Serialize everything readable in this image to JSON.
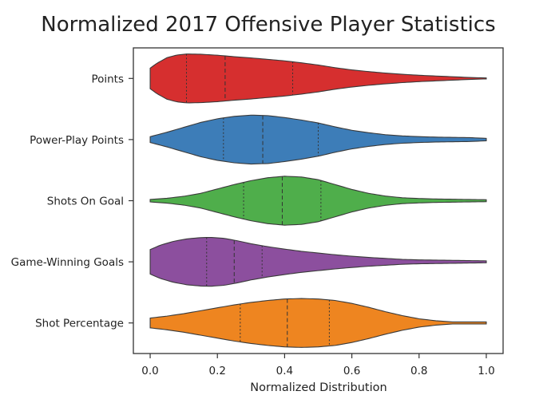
{
  "chart_data": {
    "type": "violin",
    "title": "Normalized 2017 Offensive Player Statistics",
    "xlabel": "Normalized Distribution",
    "ylabel": "",
    "xlim": [
      -0.05,
      1.05
    ],
    "xticks": [
      0.0,
      0.2,
      0.4,
      0.6,
      0.8,
      1.0
    ],
    "xtick_labels": [
      "0.0",
      "0.2",
      "0.4",
      "0.6",
      "0.8",
      "1.0"
    ],
    "orientation": "horizontal",
    "inner": "quartile",
    "grid": false,
    "legend": "none",
    "categories": [
      "Points",
      "Power-Play Points",
      "Shots On Goal",
      "Game-Winning Goals",
      "Shot Percentage"
    ],
    "series": [
      {
        "category": "Points",
        "color": "#d62f2f",
        "range": [
          0.0,
          1.0
        ],
        "quartiles": [
          0.108,
          0.223,
          0.424
        ],
        "density": [
          [
            0.0,
            0.42
          ],
          [
            0.02,
            0.62
          ],
          [
            0.05,
            0.85
          ],
          [
            0.08,
            0.96
          ],
          [
            0.11,
            1.0
          ],
          [
            0.15,
            0.99
          ],
          [
            0.2,
            0.95
          ],
          [
            0.25,
            0.89
          ],
          [
            0.3,
            0.84
          ],
          [
            0.35,
            0.78
          ],
          [
            0.4,
            0.72
          ],
          [
            0.45,
            0.64
          ],
          [
            0.5,
            0.55
          ],
          [
            0.55,
            0.44
          ],
          [
            0.6,
            0.35
          ],
          [
            0.65,
            0.28
          ],
          [
            0.7,
            0.22
          ],
          [
            0.75,
            0.17
          ],
          [
            0.8,
            0.13
          ],
          [
            0.85,
            0.1
          ],
          [
            0.9,
            0.07
          ],
          [
            0.95,
            0.04
          ],
          [
            1.0,
            0.02
          ]
        ]
      },
      {
        "category": "Power-Play Points",
        "color": "#3d7db8",
        "range": [
          0.0,
          1.0
        ],
        "quartiles": [
          0.218,
          0.335,
          0.5
        ],
        "density": [
          [
            0.0,
            0.12
          ],
          [
            0.05,
            0.3
          ],
          [
            0.1,
            0.5
          ],
          [
            0.15,
            0.7
          ],
          [
            0.2,
            0.85
          ],
          [
            0.25,
            0.95
          ],
          [
            0.3,
            1.0
          ],
          [
            0.35,
            0.98
          ],
          [
            0.4,
            0.9
          ],
          [
            0.45,
            0.8
          ],
          [
            0.5,
            0.68
          ],
          [
            0.55,
            0.52
          ],
          [
            0.6,
            0.38
          ],
          [
            0.65,
            0.28
          ],
          [
            0.7,
            0.2
          ],
          [
            0.75,
            0.15
          ],
          [
            0.8,
            0.12
          ],
          [
            0.85,
            0.1
          ],
          [
            0.9,
            0.09
          ],
          [
            0.95,
            0.08
          ],
          [
            1.0,
            0.05
          ]
        ]
      },
      {
        "category": "Shots On Goal",
        "color": "#4fae4b",
        "range": [
          0.0,
          1.0
        ],
        "quartiles": [
          0.278,
          0.393,
          0.508
        ],
        "density": [
          [
            0.0,
            0.05
          ],
          [
            0.05,
            0.1
          ],
          [
            0.1,
            0.18
          ],
          [
            0.15,
            0.3
          ],
          [
            0.2,
            0.48
          ],
          [
            0.25,
            0.66
          ],
          [
            0.3,
            0.82
          ],
          [
            0.35,
            0.94
          ],
          [
            0.4,
            1.0
          ],
          [
            0.45,
            0.97
          ],
          [
            0.5,
            0.86
          ],
          [
            0.55,
            0.66
          ],
          [
            0.6,
            0.46
          ],
          [
            0.65,
            0.3
          ],
          [
            0.7,
            0.19
          ],
          [
            0.75,
            0.12
          ],
          [
            0.8,
            0.09
          ],
          [
            0.85,
            0.07
          ],
          [
            0.9,
            0.06
          ],
          [
            0.95,
            0.05
          ],
          [
            1.0,
            0.04
          ]
        ]
      },
      {
        "category": "Game-Winning Goals",
        "color": "#8c4f9e",
        "range": [
          0.0,
          1.0
        ],
        "quartiles": [
          0.168,
          0.25,
          0.333
        ],
        "density": [
          [
            0.0,
            0.5
          ],
          [
            0.03,
            0.68
          ],
          [
            0.07,
            0.84
          ],
          [
            0.11,
            0.94
          ],
          [
            0.15,
            0.99
          ],
          [
            0.18,
            1.0
          ],
          [
            0.22,
            0.96
          ],
          [
            0.26,
            0.86
          ],
          [
            0.3,
            0.74
          ],
          [
            0.35,
            0.62
          ],
          [
            0.4,
            0.52
          ],
          [
            0.45,
            0.43
          ],
          [
            0.5,
            0.36
          ],
          [
            0.55,
            0.29
          ],
          [
            0.6,
            0.23
          ],
          [
            0.65,
            0.18
          ],
          [
            0.7,
            0.14
          ],
          [
            0.75,
            0.1
          ],
          [
            0.8,
            0.08
          ],
          [
            0.85,
            0.07
          ],
          [
            0.9,
            0.06
          ],
          [
            0.95,
            0.05
          ],
          [
            1.0,
            0.04
          ]
        ]
      },
      {
        "category": "Shot Percentage",
        "color": "#ee8520",
        "range": [
          0.0,
          1.0
        ],
        "quartiles": [
          0.268,
          0.408,
          0.533
        ],
        "density": [
          [
            0.0,
            0.2
          ],
          [
            0.05,
            0.28
          ],
          [
            0.1,
            0.38
          ],
          [
            0.15,
            0.5
          ],
          [
            0.2,
            0.62
          ],
          [
            0.25,
            0.74
          ],
          [
            0.3,
            0.84
          ],
          [
            0.35,
            0.92
          ],
          [
            0.4,
            0.98
          ],
          [
            0.45,
            1.0
          ],
          [
            0.5,
            0.98
          ],
          [
            0.55,
            0.92
          ],
          [
            0.6,
            0.8
          ],
          [
            0.65,
            0.64
          ],
          [
            0.7,
            0.46
          ],
          [
            0.75,
            0.3
          ],
          [
            0.8,
            0.17
          ],
          [
            0.85,
            0.09
          ],
          [
            0.9,
            0.04
          ],
          [
            0.95,
            0.04
          ],
          [
            1.0,
            0.04
          ]
        ]
      }
    ]
  }
}
